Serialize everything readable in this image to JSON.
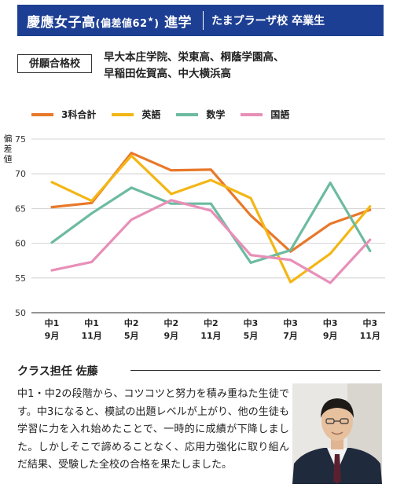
{
  "header": {
    "school_main": "慶應女子高",
    "school_paren": "(偏差値62",
    "school_star": "★",
    "school_paren_close": ")",
    "school_suffix": "進学",
    "graduate": "たまプラーザ校 卒業生",
    "bg_color": "#1d3f93"
  },
  "other_passed": {
    "label": "併願合格校",
    "line1": "早大本庄学院、栄東高、桐蔭学園高、",
    "line2": "早稲田佐賀高、中大横浜高"
  },
  "chart_data": {
    "type": "line",
    "ylabel": "偏差値",
    "ylim": [
      50,
      75
    ],
    "yticks": [
      50,
      55,
      60,
      65,
      70,
      75
    ],
    "grid": "horizontal",
    "legend_position": "top-left",
    "categories": [
      [
        "中1",
        "9月"
      ],
      [
        "中1",
        "11月"
      ],
      [
        "中2",
        "5月"
      ],
      [
        "中2",
        "9月"
      ],
      [
        "中2",
        "11月"
      ],
      [
        "中3",
        "5月"
      ],
      [
        "中3",
        "7月"
      ],
      [
        "中3",
        "9月"
      ],
      [
        "中3",
        "11月"
      ]
    ],
    "series": [
      {
        "name": "3科合計",
        "color": "#e8782a",
        "values": [
          65.2,
          65.8,
          73.0,
          70.5,
          70.6,
          64.0,
          58.8,
          62.8,
          64.8
        ]
      },
      {
        "name": "英語",
        "color": "#f4b615",
        "values": [
          68.8,
          66.1,
          72.6,
          67.1,
          69.1,
          66.5,
          54.4,
          58.5,
          65.3
        ]
      },
      {
        "name": "数学",
        "color": "#6cbba0",
        "values": [
          60.1,
          64.3,
          68.0,
          65.7,
          65.7,
          57.2,
          59.0,
          68.7,
          58.9
        ]
      },
      {
        "name": "国語",
        "color": "#e88fb8",
        "values": [
          56.1,
          57.3,
          63.4,
          66.2,
          64.7,
          58.3,
          57.6,
          54.3,
          60.5
        ]
      }
    ]
  },
  "teacher": {
    "title": "クラス担任 佐藤",
    "comment": "中1・中2の段階から、コツコツと努力を積み重ねた生徒です。中3になると、模試の出題レベルが上がり、他の生徒も学習に力を入れ始めたことで、一時的に成績が下降しました。しかしそこで諦めることなく、応用力強化に取り組んだ結果、受験した全校の合格を果たしました。"
  }
}
